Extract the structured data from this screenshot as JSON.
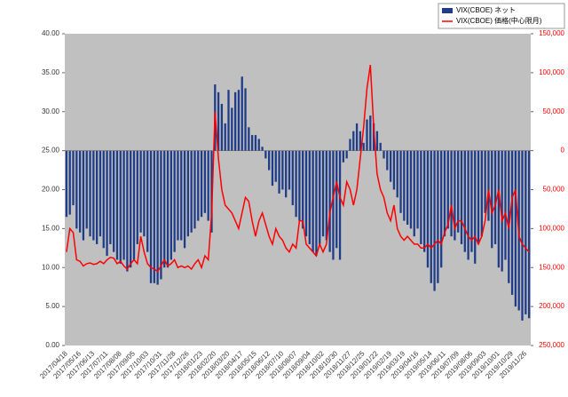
{
  "chart_data": {
    "type": "combo",
    "categories": [
      "2017/04/18",
      null,
      null,
      null,
      "2017/05/16",
      null,
      null,
      null,
      "2017/06/13",
      null,
      null,
      null,
      "2017/07/11",
      null,
      null,
      null,
      "2017/08/08",
      null,
      null,
      null,
      "2017/09/05",
      null,
      null,
      null,
      "2017/10/03",
      null,
      null,
      null,
      "2017/10/31",
      null,
      null,
      null,
      "2017/11/28",
      null,
      null,
      null,
      "2017/12/26",
      null,
      null,
      null,
      "2018/01/23",
      null,
      null,
      null,
      "2018/02/20",
      null,
      null,
      null,
      "2018/03/20",
      null,
      null,
      null,
      "2018/04/17",
      null,
      null,
      null,
      "2018/05/15",
      null,
      null,
      null,
      "2018/06/12",
      null,
      null,
      null,
      "2018/07/10",
      null,
      null,
      null,
      "2018/08/07",
      null,
      null,
      null,
      "2018/09/04",
      null,
      null,
      null,
      "2018/10/02",
      null,
      null,
      null,
      "2018/10/30",
      null,
      null,
      null,
      "2018/11/27",
      null,
      null,
      null,
      "2018/12/25",
      null,
      null,
      null,
      "2019/01/22",
      null,
      null,
      null,
      "2019/02/19",
      null,
      null,
      null,
      "2019/03/19",
      null,
      null,
      null,
      "2019/04/16",
      null,
      null,
      null,
      "2019/05/14",
      null,
      null,
      null,
      "2019/06/11",
      null,
      null,
      null,
      "2019/07/09",
      null,
      null,
      null,
      "2019/08/06",
      null,
      null,
      null,
      "2019/09/03",
      null,
      null,
      null,
      "2019/10/01",
      null,
      null,
      null,
      "2019/10/29",
      null,
      null,
      null,
      "2019/11/26",
      null
    ],
    "series": [
      {
        "name": "VIX(CBOE) ネット",
        "type": "bar",
        "axis": "y2",
        "color": "#1f3c88",
        "values": [
          -85000,
          -82000,
          -70000,
          -100000,
          -105000,
          -115000,
          -100000,
          -110000,
          -115000,
          -120000,
          -110000,
          -125000,
          -135000,
          -120000,
          -130000,
          -140000,
          -145000,
          -140000,
          -155000,
          -150000,
          -140000,
          -120000,
          -105000,
          -110000,
          -130000,
          -170000,
          -170000,
          -172000,
          -165000,
          -150000,
          -150000,
          -140000,
          -130000,
          -115000,
          -115000,
          -125000,
          -110000,
          -105000,
          -100000,
          -90000,
          -85000,
          -80000,
          -90000,
          -105000,
          85000,
          75000,
          60000,
          35000,
          78000,
          55000,
          75000,
          78000,
          95000,
          80000,
          30000,
          20000,
          20000,
          15000,
          5000,
          -10000,
          -25000,
          -45000,
          -40000,
          -55000,
          -50000,
          -60000,
          -50000,
          -70000,
          -85000,
          -90000,
          -100000,
          -110000,
          -120000,
          -130000,
          -135000,
          -120000,
          -110000,
          -115000,
          -130000,
          -140000,
          -125000,
          -140000,
          -15000,
          -10000,
          15000,
          25000,
          35000,
          25000,
          10000,
          40000,
          45000,
          35000,
          25000,
          10000,
          -10000,
          -25000,
          -40000,
          -50000,
          -60000,
          -80000,
          -90000,
          -95000,
          -100000,
          -110000,
          -100000,
          -120000,
          -130000,
          -150000,
          -170000,
          -180000,
          -170000,
          -150000,
          -110000,
          -100000,
          -110000,
          -115000,
          -105000,
          -120000,
          -130000,
          -140000,
          -130000,
          -145000,
          -120000,
          -110000,
          -80000,
          -90000,
          -125000,
          -120000,
          -150000,
          -155000,
          -140000,
          -170000,
          -185000,
          -200000,
          -205000,
          -218000,
          -210000,
          -215000
        ]
      },
      {
        "name": "VIX(CBOE) 価格(中心限月)",
        "type": "line",
        "axis": "y",
        "color": "#ff0000",
        "values": [
          12,
          15,
          14.5,
          11,
          10.8,
          10.2,
          10.5,
          10.6,
          10.4,
          10.5,
          10.8,
          10.5,
          11,
          11.3,
          11.2,
          10.5,
          10.8,
          10.2,
          9.8,
          10.5,
          11,
          10.5,
          14,
          12,
          10.5,
          10,
          9.8,
          9.5,
          10.2,
          11,
          10.2,
          10.5,
          11,
          10,
          10.2,
          10,
          10.2,
          9.8,
          10.5,
          11,
          10,
          11.5,
          11,
          17,
          30,
          24,
          20,
          18,
          17.5,
          17,
          16,
          15,
          17,
          19,
          18.5,
          16,
          14,
          16,
          17,
          15.5,
          14,
          13,
          15,
          14,
          13.5,
          12.5,
          12,
          13,
          12.5,
          16,
          16,
          13,
          12.5,
          12,
          11.5,
          13,
          12,
          13,
          17,
          19,
          21,
          19,
          18,
          21,
          20,
          18,
          20,
          24,
          28,
          33,
          36,
          28,
          22,
          20,
          19,
          17,
          16,
          18,
          15,
          14,
          13.5,
          14,
          13.5,
          13,
          13,
          12.5,
          12.5,
          13,
          12.5,
          13,
          13.5,
          13,
          14.5,
          15.5,
          18,
          15,
          16,
          16,
          15,
          14,
          13.5,
          14,
          13,
          14,
          16,
          20,
          17,
          18,
          20,
          16,
          17,
          15,
          19,
          20,
          14,
          13,
          12.5,
          12
        ]
      }
    ],
    "ylim": [
      0,
      40
    ],
    "yticks": [
      {
        "value": 0,
        "label": "0.00"
      },
      {
        "value": 5,
        "label": "5.00"
      },
      {
        "value": 10,
        "label": "10.00"
      },
      {
        "value": 15,
        "label": "15.00"
      },
      {
        "value": 20,
        "label": "20.00"
      },
      {
        "value": 25,
        "label": "25.00"
      },
      {
        "value": 30,
        "label": "30.00"
      },
      {
        "value": 35,
        "label": "35.00"
      },
      {
        "value": 40,
        "label": "40.00"
      }
    ],
    "y2lim": [
      -250000,
      150000
    ],
    "y2ticks": [
      {
        "value": 150000,
        "label": "150,000"
      },
      {
        "value": 100000,
        "label": "100,000"
      },
      {
        "value": 50000,
        "label": "50,000"
      },
      0,
      {
        "value": -50000,
        "label": "50,000"
      },
      {
        "value": -100000,
        "label": "100,000"
      },
      {
        "value": -150000,
        "label": "150,000"
      },
      {
        "value": -200000,
        "label": "200,000"
      },
      {
        "value": -250000,
        "label": "250,000"
      }
    ],
    "legend": "top-right"
  }
}
